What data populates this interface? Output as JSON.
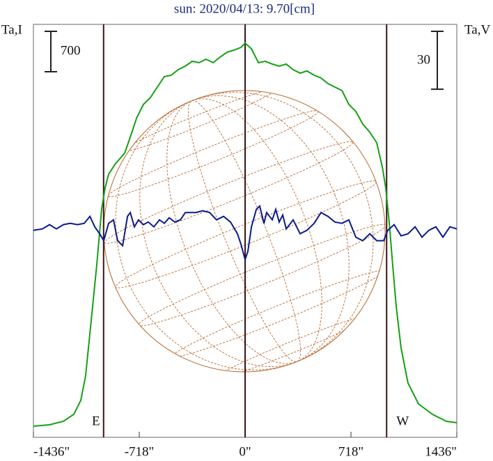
{
  "chart_data": {
    "type": "line",
    "title": "sun: 2020/04/13: 9.70[cm]",
    "y_label": "Ta,I",
    "y2_label": "Ta,V",
    "xlim": [
      -1436,
      1436
    ],
    "xticks": [
      {
        "value": -1436,
        "label": "-1436\""
      },
      {
        "value": -718,
        "label": "-718\""
      },
      {
        "value": 0,
        "label": "0\""
      },
      {
        "value": 718,
        "label": "718\""
      },
      {
        "value": 1436,
        "label": "1436\""
      }
    ],
    "ylim": [
      -217,
      6940
    ],
    "y2lim": [
      -108,
      106
    ],
    "y_scale_bar": 700,
    "y2_scale_bar": 30,
    "limb_markers": [
      {
        "label": "E",
        "x": -960
      },
      {
        "label": "W",
        "x": 960
      }
    ],
    "series": [
      {
        "name": "I",
        "color": "#14a014",
        "axis": "y",
        "x": [
          -1436,
          -1327,
          -1233,
          -1162,
          -1115,
          -1082,
          -1044,
          -1006,
          -973,
          -950,
          -926,
          -879,
          -817,
          -784,
          -737,
          -690,
          -642,
          -595,
          -548,
          -501,
          -454,
          -406,
          -359,
          -312,
          -265,
          -217,
          -170,
          -123,
          -76,
          -28,
          0,
          43,
          90,
          137,
          184,
          231,
          279,
          326,
          373,
          420,
          468,
          515,
          562,
          609,
          657,
          704,
          751,
          798,
          846,
          893,
          931,
          954,
          978,
          1001,
          1025,
          1058,
          1105,
          1176,
          1271,
          1365,
          1436
        ],
        "values": [
          -24,
          0,
          60,
          181,
          422,
          845,
          1810,
          2776,
          3742,
          4104,
          4345,
          4526,
          4707,
          4949,
          5311,
          5552,
          5673,
          5854,
          6035,
          6059,
          6156,
          6216,
          6300,
          6276,
          6337,
          6276,
          6373,
          6457,
          6493,
          6542,
          6614,
          6518,
          6276,
          6300,
          6252,
          6216,
          6252,
          6156,
          6095,
          6132,
          6059,
          6011,
          5914,
          5854,
          5794,
          5552,
          5431,
          5214,
          5069,
          4888,
          4466,
          4104,
          3500,
          2776,
          2052,
          1328,
          724,
          362,
          181,
          60,
          36
        ]
      },
      {
        "name": "V",
        "color": "#0a1a8c",
        "axis": "y2",
        "x": [
          -1436,
          -1375,
          -1327,
          -1280,
          -1233,
          -1186,
          -1138,
          -1091,
          -1053,
          -1020,
          -987,
          -959,
          -926,
          -893,
          -865,
          -831,
          -798,
          -779,
          -751,
          -723,
          -690,
          -657,
          -619,
          -581,
          -548,
          -515,
          -477,
          -439,
          -406,
          -335,
          -288,
          -241,
          -194,
          -146,
          -99,
          -52,
          -28,
          0,
          19,
          43,
          76,
          99,
          128,
          146,
          184,
          208,
          231,
          255,
          279,
          326,
          373,
          420,
          468,
          515,
          562,
          609,
          657,
          704,
          751,
          798,
          846,
          893,
          940,
          968,
          1011,
          1058,
          1105,
          1153,
          1200,
          1247,
          1294,
          1342,
          1389,
          1436
        ],
        "values": [
          -0.7,
          0,
          2.2,
          0,
          2.2,
          2.9,
          2.2,
          2.9,
          6.5,
          1.1,
          -2.5,
          -6.1,
          2.9,
          4.7,
          -6.1,
          -8.7,
          6.5,
          8.5,
          1.1,
          4.7,
          2.2,
          3.6,
          1.1,
          4.7,
          2.9,
          5.8,
          3.6,
          4.7,
          8.5,
          8.5,
          9.4,
          8.5,
          4.7,
          6.5,
          3.6,
          -2.5,
          -8.0,
          -15.9,
          -11.6,
          1.1,
          10.1,
          11.9,
          2.9,
          8.5,
          4.7,
          10.1,
          3.6,
          7.2,
          0,
          4.7,
          -2.5,
          -0.7,
          2.9,
          8.5,
          6.5,
          3.6,
          2.9,
          4.7,
          -4.3,
          -6.1,
          -2.5,
          -6.1,
          -6.1,
          -0.7,
          2.2,
          -3.6,
          -2.5,
          1.1,
          -4.3,
          -0.7,
          1.1,
          -4.3,
          1.1,
          0
        ]
      }
    ]
  }
}
